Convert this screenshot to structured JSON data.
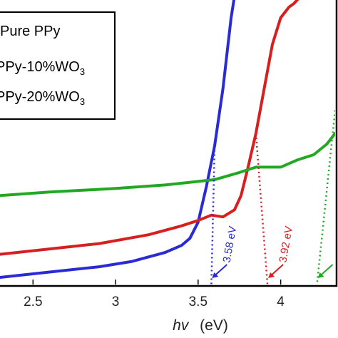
{
  "chart_data": {
    "type": "line",
    "xlabel_italic": "hv",
    "xlabel_unit": "(eV)",
    "x_ticks": [
      2.5,
      3,
      3.5,
      4
    ],
    "x_tick_labels": [
      "2.5",
      "3",
      "3.5",
      "4"
    ],
    "xlim": [
      2.3,
      4.33
    ],
    "grid": false,
    "legend_position": "top-left",
    "series": [
      {
        "name": "Pure PPy",
        "color": "#2b2bd6",
        "band_gap_label": "3.58 eV",
        "band_gap": 3.58,
        "points": [
          [
            2.3,
            0.04
          ],
          [
            2.6,
            0.07
          ],
          [
            2.9,
            0.1
          ],
          [
            3.1,
            0.13
          ],
          [
            3.3,
            0.18
          ],
          [
            3.4,
            0.22
          ],
          [
            3.45,
            0.26
          ],
          [
            3.5,
            0.35
          ],
          [
            3.55,
            0.55
          ],
          [
            3.6,
            0.78
          ],
          [
            3.65,
            1.1
          ],
          [
            3.7,
            1.5
          ],
          [
            3.72,
            1.62
          ]
        ]
      },
      {
        "name": "PPy-10%WO",
        "name_sub": "3",
        "color": "#d81f1f",
        "band_gap_label": "3.92 eV",
        "band_gap": 3.92,
        "points": [
          [
            2.3,
            0.17
          ],
          [
            2.6,
            0.2
          ],
          [
            2.9,
            0.23
          ],
          [
            3.2,
            0.28
          ],
          [
            3.4,
            0.33
          ],
          [
            3.5,
            0.36
          ],
          [
            3.58,
            0.39
          ],
          [
            3.65,
            0.38
          ],
          [
            3.72,
            0.42
          ],
          [
            3.76,
            0.5
          ],
          [
            3.8,
            0.65
          ],
          [
            3.85,
            0.85
          ],
          [
            3.9,
            1.1
          ],
          [
            3.95,
            1.35
          ],
          [
            4.0,
            1.5
          ],
          [
            4.05,
            1.56
          ],
          [
            4.08,
            1.58
          ],
          [
            4.1,
            1.6
          ],
          [
            4.12,
            1.62
          ]
        ]
      },
      {
        "name": "PPy-20%WO",
        "name_sub": "3",
        "color": "#23a823",
        "band_gap_label": "",
        "band_gap": 4.22,
        "points": [
          [
            2.3,
            0.5
          ],
          [
            2.6,
            0.52
          ],
          [
            3.0,
            0.54
          ],
          [
            3.3,
            0.56
          ],
          [
            3.6,
            0.59
          ],
          [
            3.75,
            0.63
          ],
          [
            3.85,
            0.66
          ],
          [
            4.0,
            0.66
          ],
          [
            4.1,
            0.7
          ],
          [
            4.2,
            0.73
          ],
          [
            4.28,
            0.79
          ],
          [
            4.33,
            0.85
          ]
        ]
      }
    ]
  }
}
